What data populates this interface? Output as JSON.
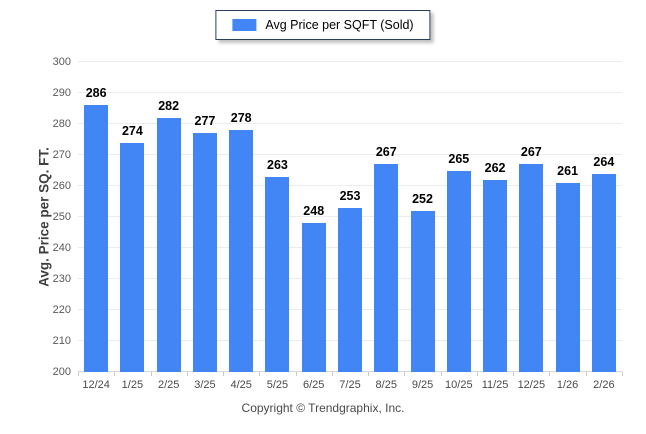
{
  "footer": {
    "copyright": "Copyright © Trendgraphix, Inc."
  },
  "chart_data": {
    "type": "bar",
    "legend_label": "Avg Price per SQFT (Sold)",
    "categories": [
      "12/24",
      "1/25",
      "2/25",
      "3/25",
      "4/25",
      "5/25",
      "6/25",
      "7/25",
      "8/25",
      "9/25",
      "10/25",
      "11/25",
      "12/25",
      "1/26",
      "2/26"
    ],
    "values": [
      286,
      274,
      282,
      277,
      278,
      263,
      248,
      253,
      267,
      252,
      265,
      262,
      267,
      261,
      264
    ],
    "title": "",
    "xlabel": "",
    "ylabel": "Avg. Price per SQ. FT.",
    "ylim": [
      200,
      300
    ],
    "yticks": [
      200,
      210,
      220,
      230,
      240,
      250,
      260,
      270,
      280,
      290,
      300
    ],
    "grid": "horizontal",
    "legend_position": "top-center",
    "bar_color": "#4285f4"
  }
}
